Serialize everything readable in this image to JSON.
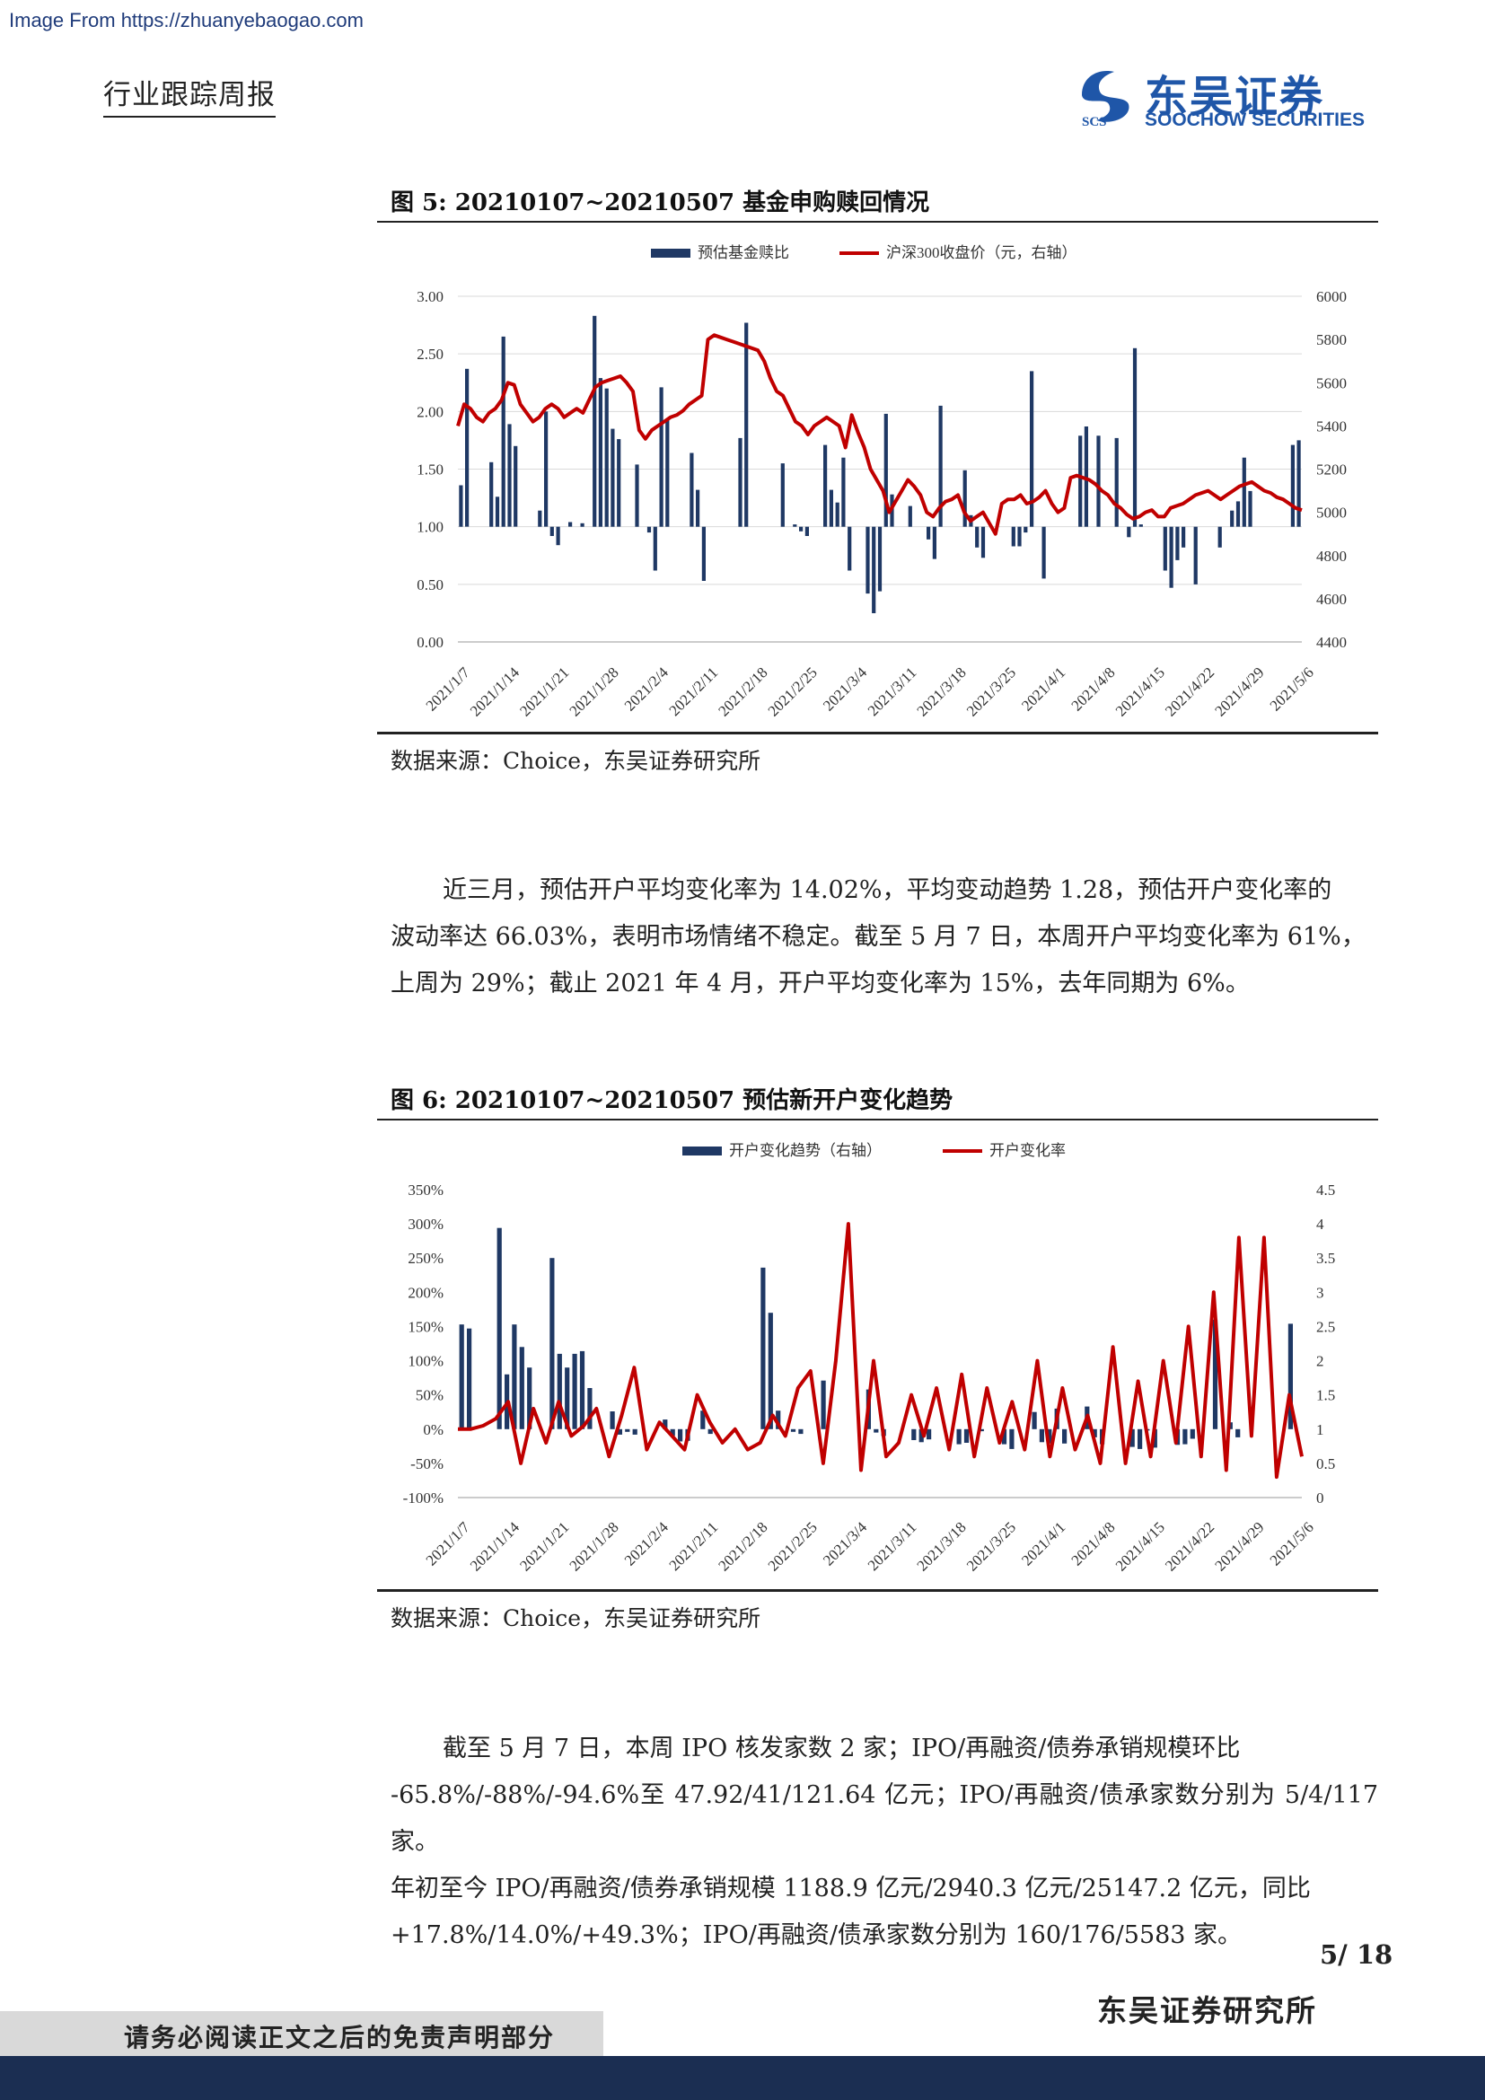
{
  "header": {
    "source_url": "Image From https://zhuanyebaogao.com",
    "report_type": "行业跟踪周报",
    "logo_cn": "东吴证券",
    "logo_en": "SOOCHOW SECURITIES",
    "logo_mark_text": "SCS"
  },
  "figure5": {
    "title": "图 5:  20210107~20210507 基金申购赎回情况",
    "source": "数据来源：Choice，东吴证券研究所"
  },
  "figure6": {
    "title": "图 6:  20210107~20210507 预估新开户变化趋势",
    "source": "数据来源：Choice，东吴证券研究所"
  },
  "paragraph1": {
    "lines": [
      "近三月，预估开户平均变化率为 14.02%，平均变动趋势 1.28，预估开户变化率的",
      "波动率达 66.03%，表明市场情绪不稳定。截至 5 月 7 日，本周开户平均变化率为 61%，",
      "上周为 29%；截止 2021 年 4 月，开户平均变化率为 15%，去年同期为 6%。"
    ]
  },
  "paragraph2": {
    "lines": [
      "截至 5 月 7 日，本周 IPO 核发家数 2 家；IPO/再融资/债券承销规模环比",
      "-65.8%/-88%/-94.6%至 47.92/41/121.64 亿元；IPO/再融资/债承家数分别为 5/4/117 家。",
      "年初至今 IPO/再融资/债券承销规模 1188.9 亿元/2940.3 亿元/25147.2 亿元，同比",
      "+17.8%/14.0%/+49.3%；IPO/再融资/债承家数分别为 160/176/5583 家。"
    ]
  },
  "footer": {
    "page_number": "5/ 18",
    "org": "东吴证券研究所",
    "disclaimer": "请务必阅读正文之后的免责声明部分"
  },
  "chart_data": [
    {
      "type": "bar+line",
      "title": "20210107~20210507 基金申购赎回情况",
      "legend": [
        "预估基金赎比",
        "沪深300收盘价（元，右轴）"
      ],
      "legend_position": "top",
      "colors": {
        "bar": "#1f3864",
        "line": "#c00000"
      },
      "x_tick_labels": [
        "2021/1/7",
        "2021/1/14",
        "2021/1/21",
        "2021/1/28",
        "2021/2/4",
        "2021/2/11",
        "2021/2/18",
        "2021/2/25",
        "2021/3/4",
        "2021/3/11",
        "2021/3/18",
        "2021/3/25",
        "2021/4/1",
        "2021/4/8",
        "2021/4/15",
        "2021/4/22",
        "2021/4/29",
        "2021/5/6"
      ],
      "y_left": {
        "ticks": [
          "0.00",
          "0.50",
          "1.00",
          "1.50",
          "2.00",
          "2.50",
          "3.00"
        ],
        "range": [
          0,
          3.0
        ],
        "baseline": 1.0
      },
      "y_right": {
        "ticks": [
          "4400",
          "4600",
          "4800",
          "5000",
          "5200",
          "5400",
          "5600",
          "5800",
          "6000"
        ],
        "range": [
          4400,
          6000
        ]
      },
      "grid": true,
      "bars": [
        1.36,
        2.37,
        1.0,
        1.0,
        1.0,
        1.56,
        1.26,
        2.65,
        1.89,
        1.7,
        1.0,
        1.0,
        1.0,
        1.14,
        2.0,
        0.92,
        0.84,
        1.0,
        1.04,
        1.0,
        1.03,
        1.0,
        2.83,
        2.29,
        2.2,
        1.85,
        1.76,
        1.0,
        1.0,
        1.54,
        1.0,
        0.95,
        0.62,
        2.21,
        1.93,
        1.0,
        1.0,
        1.0,
        1.64,
        1.32,
        0.53,
        1.0,
        1.0,
        1.0,
        1.0,
        1.0,
        1.77,
        2.77,
        1.0,
        1.0,
        1.0,
        1.0,
        1.0,
        1.55,
        1.0,
        1.02,
        0.96,
        0.92,
        1.0,
        1.0,
        1.71,
        1.32,
        1.21,
        1.6,
        0.62,
        1.0,
        1.0,
        0.42,
        0.25,
        0.44,
        1.98,
        1.28,
        1.0,
        1.0,
        1.18,
        1.0,
        1.0,
        0.89,
        0.72,
        2.05,
        1.0,
        1.0,
        1.0,
        1.49,
        1.1,
        0.82,
        0.73,
        1.0,
        1.0,
        1.0,
        1.0,
        0.83,
        0.83,
        0.95,
        2.35,
        1.0,
        0.55,
        1.0,
        1.0,
        1.0,
        1.0,
        1.0,
        1.79,
        1.87,
        1.0,
        1.79,
        1.0,
        1.0,
        1.77,
        1.0,
        0.91,
        2.55,
        1.02,
        1.0,
        1.0,
        1.0,
        0.62,
        0.47,
        0.71,
        0.82,
        1.0,
        0.5,
        1.0,
        1.0,
        1.0,
        0.82,
        1.0,
        1.14,
        1.22,
        1.6,
        1.31,
        1.0,
        1.0,
        1.0,
        1.0,
        1.0,
        1.0,
        1.71,
        1.75
      ],
      "line": [
        5400,
        5500,
        5480,
        5440,
        5420,
        5460,
        5480,
        5520,
        5600,
        5590,
        5500,
        5460,
        5420,
        5440,
        5480,
        5500,
        5480,
        5440,
        5460,
        5480,
        5460,
        5520,
        5580,
        5600,
        5610,
        5620,
        5630,
        5600,
        5560,
        5380,
        5340,
        5380,
        5400,
        5420,
        5440,
        5450,
        5470,
        5500,
        5520,
        5540,
        5800,
        5820,
        5810,
        5800,
        5790,
        5780,
        5770,
        5760,
        5750,
        5700,
        5620,
        5560,
        5540,
        5480,
        5420,
        5400,
        5360,
        5400,
        5420,
        5440,
        5420,
        5400,
        5300,
        5450,
        5370,
        5300,
        5200,
        5150,
        5100,
        5000,
        5050,
        5100,
        5150,
        5120,
        5080,
        5000,
        4980,
        5020,
        5050,
        5060,
        5080,
        5000,
        4960,
        4980,
        5000,
        4950,
        4900,
        5040,
        5060,
        5060,
        5080,
        5040,
        5050,
        5070,
        5100,
        5040,
        5000,
        5020,
        5160,
        5170,
        5160,
        5150,
        5130,
        5100,
        5080,
        5040,
        5020,
        4990,
        4970,
        4980,
        5000,
        5010,
        4980,
        4980,
        5020,
        5030,
        5040,
        5060,
        5080,
        5090,
        5100,
        5080,
        5060,
        5080,
        5100,
        5120,
        5130,
        5140,
        5120,
        5100,
        5090,
        5070,
        5060,
        5040,
        5020,
        5010
      ]
    },
    {
      "type": "bar+line",
      "title": "20210107~20210507 预估新开户变化趋势",
      "legend": [
        "开户变化趋势（右轴）",
        "开户变化率"
      ],
      "legend_position": "top",
      "colors": {
        "bar": "#1f3864",
        "line": "#c00000"
      },
      "x_tick_labels": [
        "2021/1/7",
        "2021/1/14",
        "2021/1/21",
        "2021/1/28",
        "2021/2/4",
        "2021/2/11",
        "2021/2/18",
        "2021/2/25",
        "2021/3/4",
        "2021/3/11",
        "2021/3/18",
        "2021/3/25",
        "2021/4/1",
        "2021/4/8",
        "2021/4/15",
        "2021/4/22",
        "2021/4/29",
        "2021/5/6"
      ],
      "y_left": {
        "ticks": [
          "-100%",
          "-50%",
          "0%",
          "50%",
          "100%",
          "150%",
          "200%",
          "250%",
          "300%",
          "350%"
        ],
        "range": [
          -100,
          350
        ]
      },
      "y_right": {
        "ticks": [
          "0",
          "0.5",
          "1",
          "1.5",
          "2",
          "2.5",
          "3",
          "3.5",
          "4",
          "4.5"
        ],
        "range": [
          0,
          4.5
        ],
        "baseline": 1.0
      },
      "grid": false,
      "bars": [
        2.53,
        2.47,
        1.0,
        1.0,
        1.0,
        3.94,
        1.8,
        2.53,
        2.2,
        1.9,
        1.0,
        1.0,
        3.5,
        2.1,
        1.9,
        2.1,
        2.14,
        1.6,
        1.0,
        1.0,
        1.26,
        0.92,
        0.96,
        0.92,
        1.0,
        1.0,
        1.0,
        1.14,
        0.9,
        0.82,
        0.83,
        1.0,
        1.27,
        0.93,
        1.0,
        1.0,
        1.0,
        1.0,
        1.0,
        1.0,
        3.36,
        2.7,
        1.27,
        1.0,
        0.96,
        0.93,
        1.0,
        1.0,
        1.71,
        1.0,
        1.0,
        1.0,
        1.0,
        1.0,
        1.58,
        0.95,
        0.9,
        1.0,
        1.0,
        1.0,
        0.84,
        0.81,
        0.85,
        1.0,
        1.0,
        1.0,
        0.78,
        0.8,
        1.0,
        0.97,
        1.0,
        1.0,
        0.78,
        0.71,
        1.0,
        1.0,
        1.25,
        0.81,
        0.79,
        1.3,
        0.79,
        1.0,
        1.0,
        1.33,
        0.88,
        0.78,
        1.0,
        1.0,
        1.0,
        0.74,
        0.71,
        0.98,
        0.73,
        1.0,
        1.0,
        0.77,
        0.78,
        0.86,
        1.0,
        1.0,
        2.6,
        1.0,
        1.1,
        0.88,
        1.0,
        1.0,
        1.0,
        1.0,
        1.0,
        1.0,
        2.54,
        1.0
      ],
      "line": [
        0,
        0,
        5,
        15,
        40,
        -50,
        30,
        -20,
        40,
        -10,
        5,
        30,
        -40,
        20,
        90,
        -30,
        10,
        -10,
        -30,
        50,
        10,
        -20,
        0,
        -30,
        -20,
        20,
        -10,
        60,
        85,
        -50,
        100,
        300,
        -60,
        100,
        -40,
        -20,
        50,
        -10,
        60,
        -30,
        80,
        -40,
        60,
        -20,
        40,
        -30,
        100,
        -40,
        60,
        -30,
        20,
        -50,
        120,
        -50,
        70,
        -40,
        100,
        -20,
        150,
        -40,
        200,
        -60,
        280,
        -10,
        280,
        -70,
        50,
        -40
      ],
      "line_values": [
        0,
        0,
        5,
        15,
        40,
        -50,
        30,
        -20,
        40,
        -10,
        5,
        30,
        -40,
        20,
        90,
        -30,
        10,
        -10,
        -30,
        50,
        10,
        -20,
        0,
        -30,
        -20,
        20,
        -10,
        60,
        85,
        -50,
        100,
        300,
        -60,
        100,
        -40,
        -20,
        50,
        -10,
        60,
        -30,
        80,
        -40,
        60,
        -20,
        40,
        -30,
        100,
        -40,
        60,
        -30,
        20,
        -50,
        120,
        -50,
        70,
        -40,
        100,
        -20,
        150,
        -40,
        200,
        -60,
        280,
        -10,
        280,
        -70,
        50,
        -40
      ]
    }
  ]
}
